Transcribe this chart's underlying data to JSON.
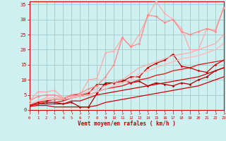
{
  "bg_color": "#cff0f0",
  "grid_color": "#a0cccc",
  "xlabel": "Vent moyen/en rafales ( km/h )",
  "xlabel_color": "#cc0000",
  "tick_color": "#cc0000",
  "x_max": 23,
  "y_max": 36,
  "yticks": [
    0,
    5,
    10,
    15,
    20,
    25,
    30,
    35
  ],
  "lines": [
    {
      "x": [
        0,
        1,
        2,
        3,
        4,
        5,
        6,
        7,
        8,
        9,
        10,
        11,
        12,
        13,
        14,
        15,
        16,
        17,
        18,
        19,
        20,
        21,
        22,
        23
      ],
      "y": [
        1.5,
        2.5,
        3.0,
        3.5,
        3.5,
        5.0,
        5.0,
        5.5,
        8.5,
        8.5,
        9.0,
        9.5,
        11,
        11,
        14,
        15.5,
        16.5,
        18.5,
        14.5,
        14,
        13,
        12.5,
        15,
        16.5
      ],
      "color": "#cc0000",
      "lw": 0.9,
      "marker": "D",
      "ms": 1.8
    },
    {
      "x": [
        0,
        1,
        2,
        3,
        4,
        5,
        6,
        7,
        8,
        9,
        10,
        11,
        12,
        13,
        14,
        15,
        16,
        17,
        18,
        19,
        20,
        21,
        22,
        23
      ],
      "y": [
        1.5,
        2.0,
        2.5,
        2.5,
        2.0,
        2.5,
        1.0,
        1.0,
        5.5,
        9.0,
        9.0,
        10,
        9.0,
        9.5,
        8.0,
        9.0,
        8.5,
        8.0,
        9.0,
        8.5,
        10,
        11,
        13,
        14
      ],
      "color": "#aa0000",
      "lw": 0.9,
      "marker": "D",
      "ms": 1.8
    },
    {
      "x": [
        0,
        1,
        2,
        3,
        4,
        5,
        6,
        7,
        8,
        9,
        10,
        11,
        12,
        13,
        14,
        15,
        16,
        17,
        18,
        19,
        20,
        21,
        22,
        23
      ],
      "y": [
        1.2,
        1.5,
        1.5,
        1.0,
        1.0,
        1.0,
        1.0,
        1.0,
        1.5,
        2.5,
        3.0,
        3.5,
        4.0,
        4.5,
        5.0,
        5.5,
        6.0,
        6.5,
        7.0,
        7.5,
        8.0,
        9.0,
        10,
        11
      ],
      "color": "#cc0000",
      "lw": 0.9,
      "marker": null,
      "ms": 0
    },
    {
      "x": [
        0,
        1,
        2,
        3,
        4,
        5,
        6,
        7,
        8,
        9,
        10,
        11,
        12,
        13,
        14,
        15,
        16,
        17,
        18,
        19,
        20,
        21,
        22,
        23
      ],
      "y": [
        1.5,
        2.0,
        2.0,
        2.0,
        2.0,
        3.0,
        3.0,
        4.0,
        5.0,
        5.5,
        6.0,
        6.5,
        7.0,
        7.5,
        8.0,
        8.5,
        9.0,
        9.5,
        10,
        10.5,
        11,
        12,
        13,
        14
      ],
      "color": "#cc0000",
      "lw": 0.9,
      "marker": null,
      "ms": 0
    },
    {
      "x": [
        0,
        1,
        2,
        3,
        4,
        5,
        6,
        7,
        8,
        9,
        10,
        11,
        12,
        13,
        14,
        15,
        16,
        17,
        18,
        19,
        20,
        21,
        22,
        23
      ],
      "y": [
        1.5,
        2.0,
        2.5,
        2.5,
        3.0,
        4.0,
        4.5,
        5.0,
        6.0,
        7.0,
        7.5,
        8.0,
        9.0,
        10,
        10.5,
        11.5,
        12,
        13,
        13.5,
        14,
        15,
        15.5,
        16,
        16.5
      ],
      "color": "#dd2222",
      "lw": 1.0,
      "marker": null,
      "ms": 0
    },
    {
      "x": [
        0,
        1,
        2,
        3,
        4,
        5,
        6,
        7,
        8,
        9,
        10,
        11,
        12,
        13,
        14,
        15,
        16,
        17,
        18,
        19,
        20,
        21,
        22,
        23
      ],
      "y": [
        3.0,
        6.0,
        6.0,
        6.5,
        4.0,
        4.5,
        5.0,
        10,
        10.5,
        19,
        19.5,
        24,
        21,
        25,
        31,
        36,
        32,
        30,
        27,
        20,
        20,
        27,
        26.5,
        34
      ],
      "color": "#ffaaaa",
      "lw": 0.9,
      "marker": "D",
      "ms": 1.8
    },
    {
      "x": [
        0,
        1,
        2,
        3,
        4,
        5,
        6,
        7,
        8,
        9,
        10,
        11,
        12,
        13,
        14,
        15,
        16,
        17,
        18,
        19,
        20,
        21,
        22,
        23
      ],
      "y": [
        3.0,
        4.5,
        5.0,
        5.0,
        4.0,
        5.0,
        5.5,
        7.0,
        8.0,
        11,
        15,
        24,
        21,
        22,
        31.5,
        31,
        29,
        30,
        26,
        25,
        26,
        27,
        26,
        34
      ],
      "color": "#ff8888",
      "lw": 0.9,
      "marker": "D",
      "ms": 1.8
    },
    {
      "x": [
        0,
        1,
        2,
        3,
        4,
        5,
        6,
        7,
        8,
        9,
        10,
        11,
        12,
        13,
        14,
        15,
        16,
        17,
        18,
        19,
        20,
        21,
        22,
        23
      ],
      "y": [
        2.0,
        3.0,
        4.0,
        4.0,
        4.0,
        4.5,
        5.0,
        6.0,
        7.0,
        8.0,
        9.0,
        10,
        12,
        14,
        15,
        16,
        17,
        18,
        18.5,
        19,
        20,
        21,
        22,
        25
      ],
      "color": "#ffaaaa",
      "lw": 0.9,
      "marker": null,
      "ms": 0
    },
    {
      "x": [
        0,
        1,
        2,
        3,
        4,
        5,
        6,
        7,
        8,
        9,
        10,
        11,
        12,
        13,
        14,
        15,
        16,
        17,
        18,
        19,
        20,
        21,
        22,
        23
      ],
      "y": [
        2.0,
        3.0,
        3.5,
        3.5,
        3.5,
        4.0,
        4.5,
        5.0,
        6.0,
        7.0,
        8.0,
        9.0,
        10,
        12,
        13,
        14,
        15,
        16,
        17,
        17.5,
        18,
        19,
        20,
        22
      ],
      "color": "#ffbbbb",
      "lw": 1.0,
      "marker": null,
      "ms": 0
    }
  ],
  "wind_arrows": [
    "↑",
    "↑",
    "↑",
    "↖",
    "↑",
    "↑",
    "↗",
    "↗",
    "↑",
    "↗",
    "↗",
    "↗",
    "↗",
    "↗",
    "↗",
    "↗",
    "↗",
    "↑",
    "↗",
    "↑",
    "↗",
    "→",
    "↗",
    "↗"
  ]
}
